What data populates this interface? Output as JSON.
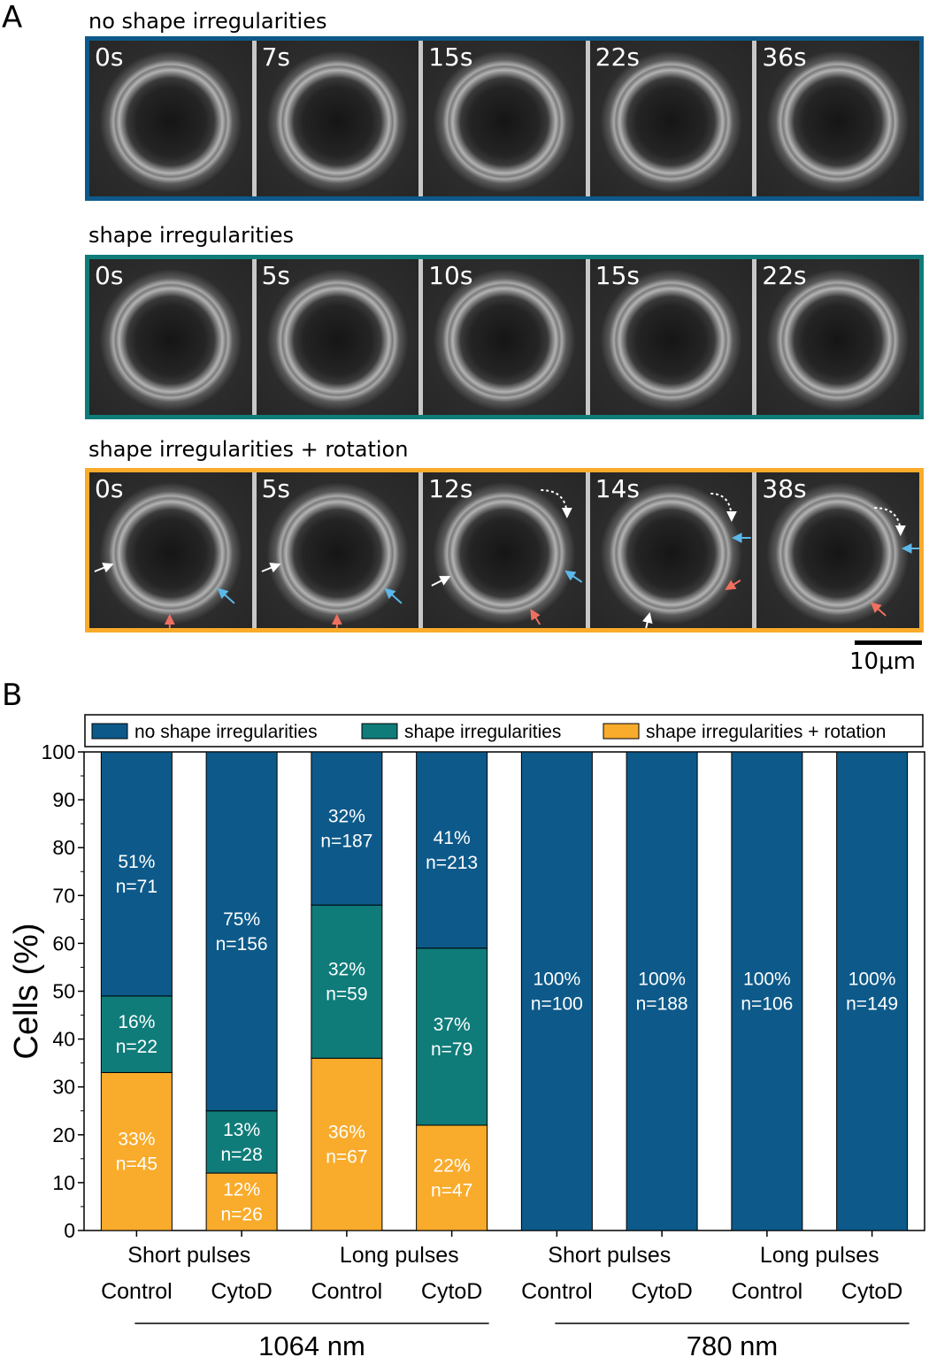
{
  "panel_a": {
    "letter": "A",
    "rows": [
      {
        "title": "no shape irregularities",
        "color": "#0d5a8a",
        "times": [
          "0s",
          "7s",
          "15s",
          "22s",
          "36s"
        ]
      },
      {
        "title": "shape irregularities",
        "color": "#0f7c7a",
        "times": [
          "0s",
          "5s",
          "10s",
          "15s",
          "22s"
        ]
      },
      {
        "title": "shape irregularities + rotation",
        "color": "#f9ab2b",
        "times": [
          "0s",
          "5s",
          "12s",
          "14s",
          "38s"
        ]
      }
    ],
    "scale_bar": "10μm",
    "arrow_colors": {
      "white": "#ffffff",
      "blue": "#5cb8e8",
      "red": "#f07060"
    }
  },
  "panel_b": {
    "letter": "B"
  },
  "chart_data": {
    "type": "bar",
    "stacked": true,
    "ylabel": "Cells (%)",
    "ylim": [
      0,
      100
    ],
    "yticks": [
      0,
      10,
      20,
      30,
      40,
      50,
      60,
      70,
      80,
      90,
      100
    ],
    "legend_position": "top",
    "categories": [
      "Control",
      "CytoD",
      "Control",
      "CytoD",
      "Control",
      "CytoD",
      "Control",
      "CytoD"
    ],
    "pulse_groups": [
      {
        "label": "Short pulses",
        "bars": [
          0,
          1
        ]
      },
      {
        "label": "Long pulses",
        "bars": [
          2,
          3
        ]
      },
      {
        "label": "Short pulses",
        "bars": [
          4,
          5
        ]
      },
      {
        "label": "Long pulses",
        "bars": [
          6,
          7
        ]
      }
    ],
    "wavelength_groups": [
      {
        "label": "1064 nm",
        "bars": [
          0,
          3
        ]
      },
      {
        "label": "780 nm",
        "bars": [
          4,
          7
        ]
      }
    ],
    "series": [
      {
        "name": "shape irregularities + rotation",
        "color": "#f9ab2b",
        "values": [
          33,
          12,
          36,
          22,
          0,
          0,
          0,
          0
        ],
        "labels": [
          "33%\nn=45",
          "12%\nn=26",
          "36%\nn=67",
          "22%\nn=47",
          "",
          "",
          "",
          ""
        ]
      },
      {
        "name": "shape irregularities",
        "color": "#0f7c7a",
        "values": [
          16,
          13,
          32,
          37,
          0,
          0,
          0,
          0
        ],
        "labels": [
          "16%\nn=22",
          "13%\nn=28",
          "32%\nn=59",
          "37%\nn=79",
          "",
          "",
          "",
          ""
        ]
      },
      {
        "name": "no shape irregularities",
        "color": "#0d5a8a",
        "values": [
          51,
          75,
          32,
          41,
          100,
          100,
          100,
          100
        ],
        "labels": [
          "51%\nn=71",
          "75%\nn=156",
          "32%\nn=187",
          "41%\nn=213",
          "100%\nn=100",
          "100%\nn=188",
          "100%\nn=106",
          "100%\nn=149"
        ]
      }
    ],
    "legend_order": [
      "no shape irregularities",
      "shape irregularities",
      "shape irregularities + rotation"
    ]
  }
}
